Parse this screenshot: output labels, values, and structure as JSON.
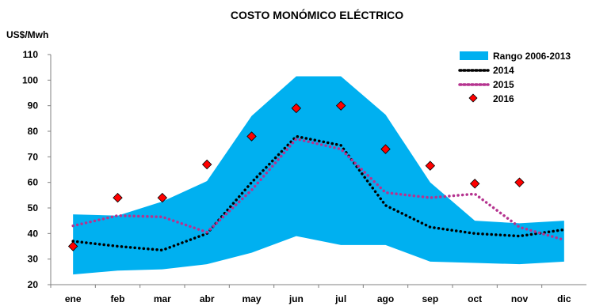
{
  "chart_data": {
    "type": "area",
    "title": "COSTO MONÓMICO ELÉCTRICO",
    "ylabel": "US$/Mwh",
    "xlabel": "",
    "categories": [
      "ene",
      "feb",
      "mar",
      "abr",
      "may",
      "jun",
      "jul",
      "ago",
      "sep",
      "oct",
      "nov",
      "dic"
    ],
    "ylim": [
      20,
      110
    ],
    "yticks": [
      20,
      30,
      40,
      50,
      60,
      70,
      80,
      90,
      100,
      110
    ],
    "grid": false,
    "legend_position": "top-right",
    "range": {
      "name": "Rango 2006-2013",
      "color": "#00B0F0",
      "min": [
        24,
        25.5,
        26,
        28,
        32.5,
        39,
        35.5,
        35.5,
        29,
        28.5,
        28,
        29
      ],
      "max": [
        47.5,
        47,
        52.5,
        60.5,
        86,
        101.5,
        101.5,
        86.5,
        60,
        45,
        44,
        45
      ]
    },
    "series": [
      {
        "name": "2014",
        "color": "#000000",
        "style": "dotted",
        "values": [
          37,
          35,
          33.5,
          40,
          60,
          78,
          74.5,
          51,
          42.5,
          40,
          39,
          41.5
        ]
      },
      {
        "name": "2015",
        "color": "#B5338F",
        "style": "dotted",
        "values": [
          43,
          47,
          46.5,
          40.5,
          57,
          77,
          73,
          56,
          54,
          55.5,
          42.5,
          37.5
        ]
      },
      {
        "name": "2016",
        "color": "#FF0000",
        "style": "diamond",
        "values": [
          35,
          54,
          54,
          67,
          78,
          89,
          90,
          73,
          66.5,
          59.5,
          60,
          null
        ]
      }
    ]
  }
}
